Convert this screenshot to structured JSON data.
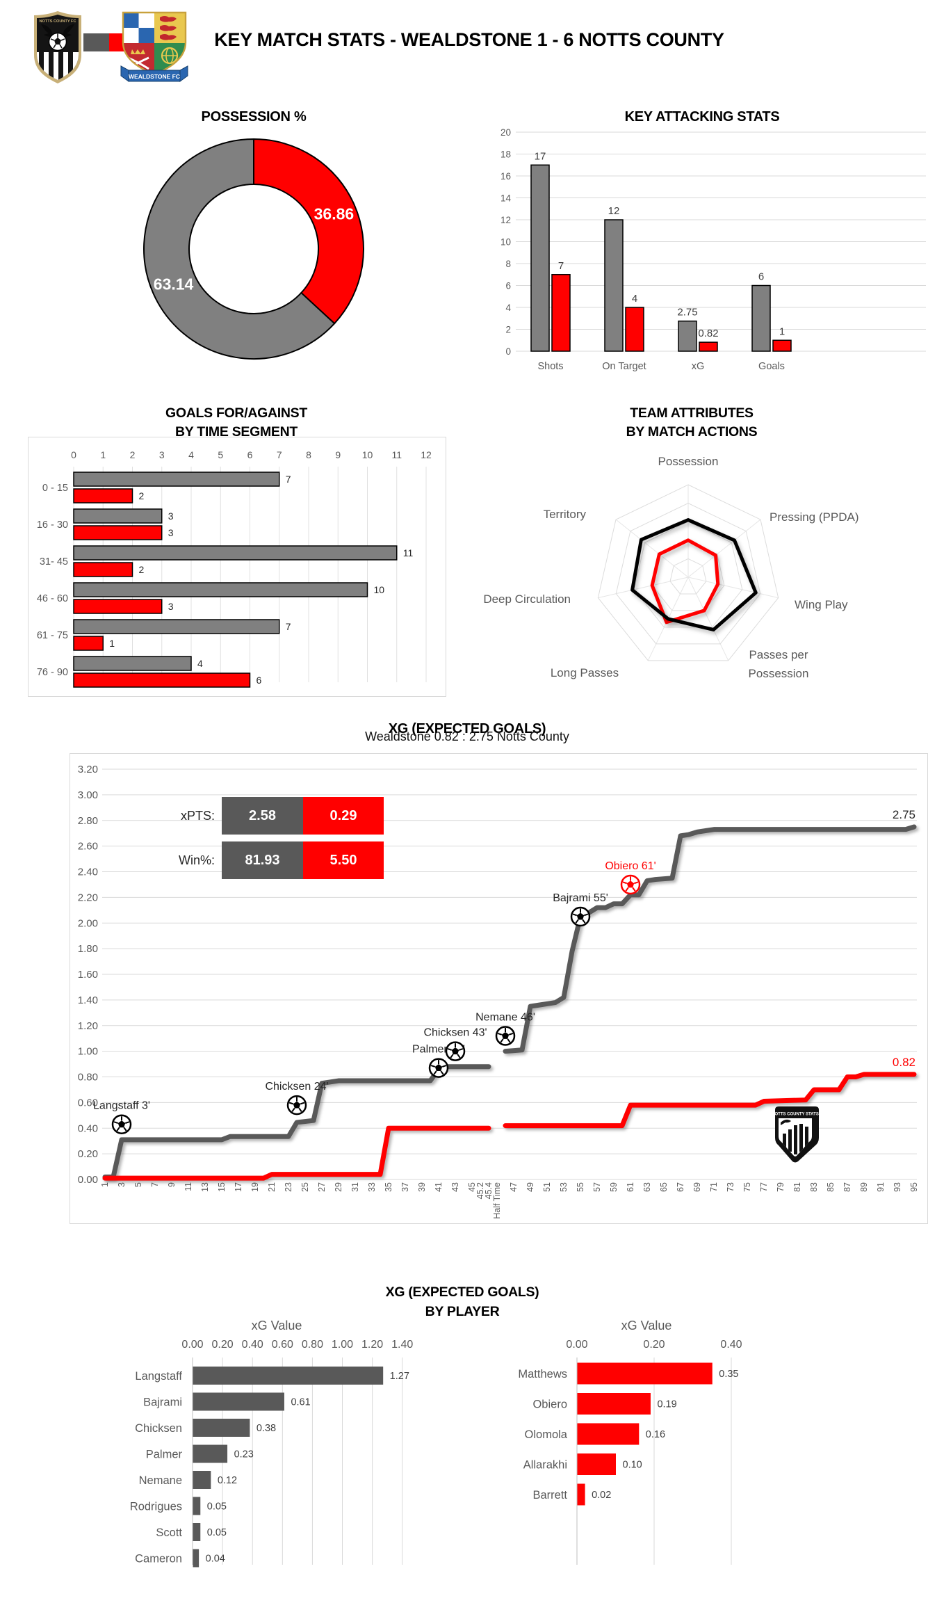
{
  "colors": {
    "red": "#FF0000",
    "bar_gray": "#808080",
    "dark_gray": "#595959",
    "grid": "#D9D9D9",
    "tick_text": "#595959",
    "value_text": "#262626",
    "black": "#000000"
  },
  "teams": [
    {
      "name": "Notts County",
      "color": "#808080"
    },
    {
      "name": "Wealdstone",
      "color": "#FF0000"
    }
  ],
  "header": {
    "title": "KEY MATCH STATS - WEALDSTONE 1 - 6 NOTTS COUNTY",
    "home_badge_label": "NOTTS COUNTY FC",
    "away_badge_banner": "WEALDSTONE FC"
  },
  "possession": {
    "title": "POSSESSION %",
    "chart_data": {
      "type": "pie",
      "start_angle_deg": -90,
      "slices": [
        {
          "team": "Wealdstone",
          "value": 36.86,
          "label": "36.86",
          "color": "#FF0000"
        },
        {
          "team": "Notts County",
          "value": 63.14,
          "label": "63.14",
          "color": "#808080"
        }
      ]
    }
  },
  "attacking": {
    "title": "KEY ATTACKING STATS",
    "chart_data": {
      "type": "bar",
      "categories": [
        "Shots",
        "On Target",
        "xG",
        "Goals"
      ],
      "series": [
        {
          "name": "Notts County",
          "color": "#808080",
          "values": [
            17,
            12,
            2.75,
            6
          ],
          "labels": [
            "17",
            "12",
            "2.75",
            "6"
          ]
        },
        {
          "name": "Wealdstone",
          "color": "#FF0000",
          "values": [
            7,
            4,
            0.82,
            1
          ],
          "labels": [
            "7",
            "4",
            "0.82",
            "1"
          ]
        }
      ],
      "ylim": [
        0,
        20
      ],
      "ytick": 2,
      "grid": true
    }
  },
  "time_segment": {
    "title_line1": "GOALS FOR/AGAINST",
    "title_line2": "BY TIME SEGMENT",
    "chart_data": {
      "type": "bar",
      "orientation": "horizontal",
      "categories": [
        "0 - 15",
        "16 - 30",
        "31- 45",
        "46 - 60",
        "61 - 75",
        "76 - 90"
      ],
      "series": [
        {
          "name": "Notts County",
          "color": "#808080",
          "values": [
            7,
            3,
            11,
            10,
            7,
            4
          ]
        },
        {
          "name": "Wealdstone",
          "color": "#FF0000",
          "values": [
            2,
            3,
            2,
            3,
            1,
            6
          ]
        }
      ],
      "xlim": [
        0,
        12
      ],
      "xtick": 1
    }
  },
  "radar": {
    "title_line1": "TEAM ATTRIBUTES",
    "title_line2": "BY MATCH ACTIONS",
    "chart_data": {
      "type": "radar",
      "axes": [
        "Possession",
        "Pressing (PPDA)",
        "Wing Play",
        "Passes per Possession",
        "Long Passes",
        "Deep Circulation",
        "Territory"
      ],
      "rings": 5,
      "series": [
        {
          "name": "Notts County",
          "color": "#000000",
          "values": [
            0.62,
            0.64,
            0.75,
            0.63,
            0.5,
            0.62,
            0.65
          ]
        },
        {
          "name": "Wealdstone",
          "color": "#FF0000",
          "values": [
            0.4,
            0.38,
            0.33,
            0.4,
            0.54,
            0.4,
            0.4
          ]
        }
      ]
    }
  },
  "xg_timeline": {
    "title": "XG (EXPECTED GOALS)",
    "subtitle": "Wealdstone 0.82 : 2.75 Notts County",
    "badge_text": "NOTTS COUNTY STATS",
    "legend": {
      "xpts_label": "xPTS:",
      "xpts_home": "2.58",
      "xpts_away": "0.29",
      "win_label": "Win%:",
      "win_home": "81.93",
      "win_away": "5.50"
    },
    "chart_data": {
      "type": "line",
      "ylim": [
        0,
        3.2
      ],
      "ytick": 0.2,
      "x_categories": [
        "1",
        "2",
        "3",
        "4",
        "5",
        "6",
        "7",
        "8",
        "9",
        "10",
        "11",
        "12",
        "13",
        "14",
        "15",
        "16",
        "17",
        "18",
        "19",
        "20",
        "21",
        "22",
        "23",
        "24",
        "25",
        "26",
        "27",
        "28",
        "29",
        "30",
        "31",
        "32",
        "33",
        "34",
        "35",
        "36",
        "37",
        "38",
        "39",
        "40",
        "41",
        "42",
        "43",
        "44",
        "45",
        "45.2",
        "45.4",
        "Half Time",
        "46",
        "47",
        "48",
        "49",
        "50",
        "51",
        "52",
        "53",
        "54",
        "55",
        "56",
        "57",
        "58",
        "59",
        "60",
        "61",
        "62",
        "63",
        "64",
        "65",
        "66",
        "67",
        "68",
        "69",
        "70",
        "71",
        "72",
        "73",
        "74",
        "75",
        "76",
        "77",
        "78",
        "79",
        "80",
        "81",
        "82",
        "83",
        "84",
        "85",
        "86",
        "87",
        "88",
        "89",
        "90",
        "91",
        "92",
        "93",
        "94",
        "95"
      ],
      "series": [
        {
          "name": "Notts County",
          "color": "#595959",
          "end_label": "2.75",
          "segments": [
            [
              [
                1,
                0.02
              ],
              [
                2,
                0.02
              ],
              [
                3,
                0.31
              ],
              [
                15,
                0.31
              ],
              [
                16,
                0.335
              ],
              [
                23,
                0.335
              ],
              [
                24,
                0.445
              ],
              [
                26,
                0.46
              ],
              [
                27,
                0.75
              ],
              [
                29,
                0.77
              ],
              [
                40,
                0.77
              ],
              [
                41,
                0.86
              ],
              [
                42,
                0.88
              ],
              [
                45.4,
                0.88
              ]
            ],
            [
              [
                46,
                1.0
              ],
              [
                48,
                1.01
              ],
              [
                49,
                1.35
              ],
              [
                50,
                1.36
              ],
              [
                52,
                1.38
              ],
              [
                53,
                1.42
              ],
              [
                54,
                1.78
              ],
              [
                55,
                2.05
              ],
              [
                56,
                2.08
              ],
              [
                57,
                2.12
              ],
              [
                58,
                2.12
              ],
              [
                59,
                2.15
              ],
              [
                60,
                2.15
              ],
              [
                61,
                2.22
              ],
              [
                62,
                2.22
              ],
              [
                63,
                2.33
              ],
              [
                64,
                2.34
              ],
              [
                66,
                2.35
              ],
              [
                67,
                2.68
              ],
              [
                68,
                2.69
              ],
              [
                69,
                2.71
              ],
              [
                71,
                2.73
              ],
              [
                94,
                2.73
              ],
              [
                95,
                2.75
              ]
            ]
          ]
        },
        {
          "name": "Wealdstone",
          "color": "#FF0000",
          "end_label": "0.82",
          "segments": [
            [
              [
                1,
                0.01
              ],
              [
                20,
                0.01
              ],
              [
                21,
                0.04
              ],
              [
                34,
                0.04
              ],
              [
                35,
                0.4
              ],
              [
                45.4,
                0.4
              ]
            ],
            [
              [
                46,
                0.42
              ],
              [
                60,
                0.42
              ],
              [
                61,
                0.58
              ],
              [
                76,
                0.58
              ],
              [
                77,
                0.61
              ],
              [
                82,
                0.62
              ],
              [
                83,
                0.7
              ],
              [
                86,
                0.7
              ],
              [
                87,
                0.8
              ],
              [
                88,
                0.8
              ],
              [
                89,
                0.82
              ],
              [
                95,
                0.82
              ]
            ]
          ]
        }
      ],
      "goals": [
        {
          "label": "Langstaff 3'",
          "minute": 3,
          "y": 0.43,
          "team": "Notts County",
          "color": "#000000"
        },
        {
          "label": "Chicksen 24'",
          "minute": 24,
          "y": 0.58,
          "team": "Notts County",
          "color": "#000000"
        },
        {
          "label": "Palmer 41'",
          "minute": 41,
          "y": 0.87,
          "team": "Notts County",
          "color": "#000000"
        },
        {
          "label": "Chicksen 43'",
          "minute": 43,
          "y": 1.0,
          "team": "Notts County",
          "color": "#000000"
        },
        {
          "label": "Nemane 46'",
          "minute": 46,
          "y": 1.12,
          "team": "Notts County",
          "color": "#000000"
        },
        {
          "label": "Bajrami 55'",
          "minute": 55,
          "y": 2.05,
          "team": "Notts County",
          "color": "#000000"
        },
        {
          "label": "Obiero 61'",
          "minute": 61,
          "y": 2.3,
          "team": "Wealdstone",
          "color": "#FF0000"
        }
      ]
    }
  },
  "xg_players": {
    "title_line1": "XG (EXPECTED GOALS)",
    "title_line2": "BY PLAYER",
    "left": {
      "axis_title": "xG Value",
      "chart_data": {
        "type": "bar",
        "orientation": "horizontal",
        "color": "#595959",
        "xlim": [
          0,
          1.4
        ],
        "xtick": 0.2,
        "categories": [
          "Langstaff",
          "Bajrami",
          "Chicksen",
          "Palmer",
          "Nemane",
          "Rodrigues",
          "Scott",
          "Cameron"
        ],
        "values": [
          1.27,
          0.61,
          0.38,
          0.23,
          0.12,
          0.05,
          0.05,
          0.04
        ],
        "labels": [
          "1.27",
          "0.61",
          "0.38",
          "0.23",
          "0.12",
          "0.05",
          "0.05",
          "0.04"
        ]
      }
    },
    "right": {
      "axis_title": "xG Value",
      "chart_data": {
        "type": "bar",
        "orientation": "horizontal",
        "color": "#FF0000",
        "xlim": [
          0,
          0.4
        ],
        "xtick": 0.2,
        "categories": [
          "Matthews",
          "Obiero",
          "Olomola",
          "Allarakhi",
          "Barrett"
        ],
        "values": [
          0.35,
          0.19,
          0.16,
          0.1,
          0.02
        ],
        "labels": [
          "0.35",
          "0.19",
          "0.16",
          "0.10",
          "0.02"
        ]
      }
    }
  }
}
